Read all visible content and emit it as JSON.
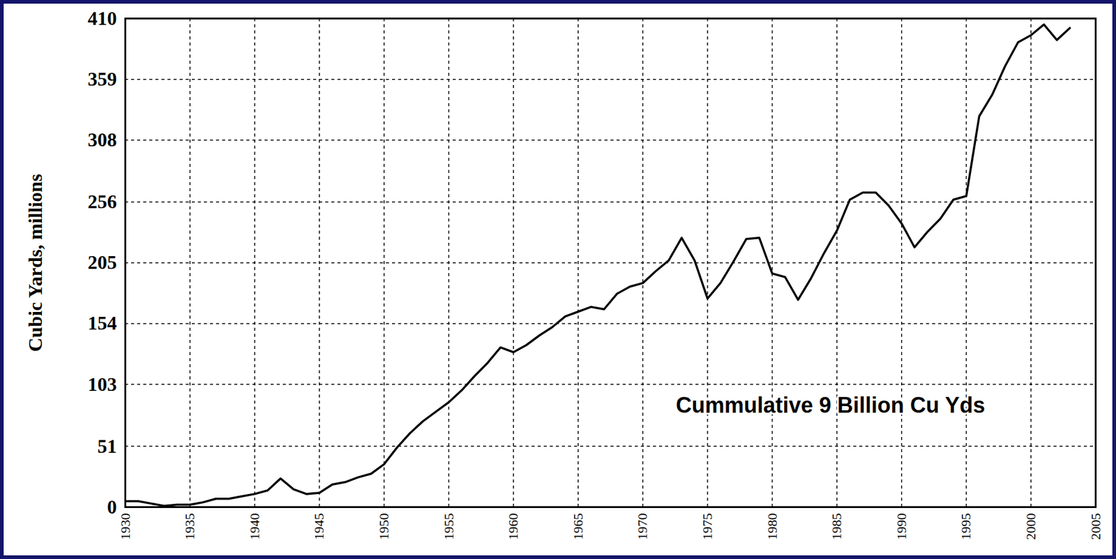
{
  "chart_data": {
    "type": "line",
    "y_label": "Cubic Yards, millions",
    "annotations": [
      "Cummulative 9 Billion Cu Yds"
    ],
    "x": [
      1930,
      1931,
      1932,
      1933,
      1934,
      1935,
      1936,
      1937,
      1938,
      1939,
      1940,
      1941,
      1942,
      1943,
      1944,
      1945,
      1946,
      1947,
      1948,
      1949,
      1950,
      1951,
      1952,
      1953,
      1954,
      1955,
      1956,
      1957,
      1958,
      1959,
      1960,
      1961,
      1962,
      1963,
      1964,
      1965,
      1966,
      1967,
      1968,
      1969,
      1970,
      1971,
      1972,
      1973,
      1974,
      1975,
      1976,
      1977,
      1978,
      1979,
      1980,
      1981,
      1982,
      1983,
      1984,
      1985,
      1986,
      1987,
      1988,
      1989,
      1990,
      1991,
      1992,
      1993,
      1994,
      1995,
      1996,
      1997,
      1998,
      1999,
      2000,
      2001,
      2002,
      2003
    ],
    "values": [
      5,
      5,
      3,
      1,
      2,
      2,
      4,
      7,
      7,
      9,
      11,
      14,
      24,
      15,
      11,
      12,
      19,
      21,
      25,
      28,
      36,
      50,
      62,
      72,
      80,
      88,
      98,
      110,
      121,
      134,
      130,
      136,
      144,
      151,
      160,
      164,
      168,
      166,
      179,
      185,
      188,
      198,
      207,
      226,
      207,
      175,
      188,
      206,
      225,
      226,
      196,
      193,
      174,
      192,
      213,
      232,
      258,
      264,
      264,
      253,
      238,
      218,
      231,
      242,
      258,
      261,
      328,
      346,
      370,
      390,
      396,
      405,
      392,
      402
    ],
    "color": "#000000",
    "xlim": [
      1930,
      2005
    ],
    "ylim": [
      0,
      410
    ],
    "xticks": [
      1930,
      1935,
      1940,
      1945,
      1950,
      1955,
      1960,
      1965,
      1970,
      1975,
      1980,
      1985,
      1990,
      1995,
      2000,
      2005
    ],
    "yticks": [
      0,
      51,
      103,
      154,
      205,
      256,
      308,
      359,
      410
    ],
    "grid": true
  }
}
